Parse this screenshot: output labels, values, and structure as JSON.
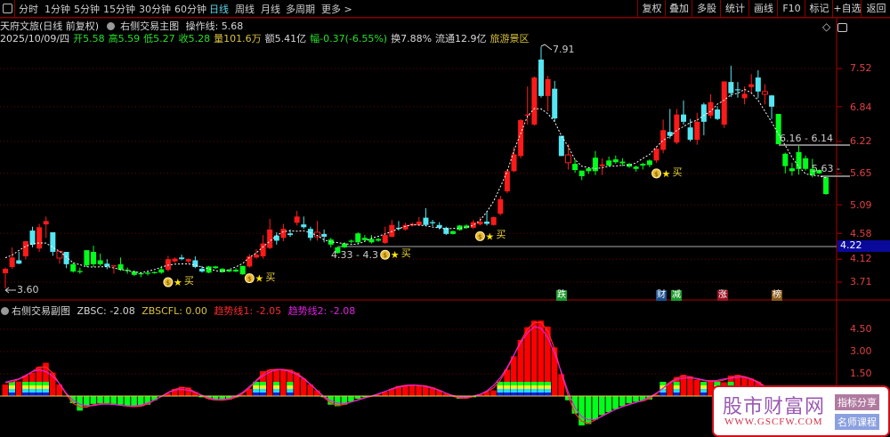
{
  "toolbar": {
    "tabs": [
      "分时",
      "1分钟",
      "5分钟",
      "15分钟",
      "30分钟",
      "60分钟",
      "日线",
      "周线",
      "月线",
      "多周期",
      "更多 >"
    ],
    "active_tab": "日线",
    "right_buttons": [
      "复权",
      "叠加",
      "多股",
      "统计",
      "画线",
      "F10",
      "标记",
      "+自选",
      "返回"
    ]
  },
  "header": {
    "stock": "天府文旅(日线 前复权)",
    "indicator": "右侧交易主图",
    "op_line": "操作线: 5.68",
    "date": "2025/10/09/四",
    "open_label": "开",
    "open": "5.58",
    "high_label": "高",
    "high": "5.59",
    "low_label": "低",
    "low": "5.27",
    "close_label": "收",
    "close": "5.28",
    "volume": "量101.6万",
    "amount": "额5.41亿",
    "change": "幅-0.37(-6.55%)",
    "turnover": "换7.88%",
    "float_cap": "流通12.9亿",
    "sector": "旅游景区"
  },
  "price_axis": [
    "7.52",
    "6.84",
    "6.22",
    "5.65",
    "5.09",
    "4.58",
    "4.12",
    "3.71"
  ],
  "current_price_tag": "4.22",
  "annotations": {
    "high_mark": "7.91",
    "low_mark": "3.60",
    "range1": "4.33 - 4.3",
    "range2": "6.16 - 6.14",
    "range3": "5.63 -",
    "buy_label": "买"
  },
  "news_tags": [
    {
      "text": "跌",
      "color": "#1a9a2a"
    },
    {
      "text": "财",
      "color": "#1c4f8c"
    },
    {
      "text": "减",
      "color": "#1a9a2a"
    },
    {
      "text": "涨",
      "color": "#9a1020"
    },
    {
      "text": "榜",
      "color": "#8a5a1a"
    }
  ],
  "colors": {
    "up": "#ff1a1a",
    "down_cyan": "#54e6f2",
    "down_green": "#00ff1a",
    "ma_dash": "#ffffff",
    "trend1": "#ff2a2a",
    "trend2": "#e020e0",
    "grid": "#6a0000",
    "accent": "#5fd6e6"
  },
  "chart_data": {
    "type": "candlestick",
    "fields": [
      "open",
      "high",
      "low",
      "close",
      "style"
    ],
    "candles": [
      [
        3.87,
        3.97,
        3.6,
        3.95,
        "r"
      ],
      [
        3.98,
        4.33,
        3.95,
        4.15,
        "r"
      ],
      [
        4.1,
        4.25,
        4.03,
        4.04,
        "c"
      ],
      [
        4.17,
        4.44,
        4.12,
        4.44,
        "r"
      ],
      [
        4.63,
        4.7,
        4.33,
        4.38,
        "c"
      ],
      [
        4.31,
        4.75,
        4.25,
        4.69,
        "r"
      ],
      [
        4.74,
        4.88,
        4.5,
        4.8,
        "r"
      ],
      [
        4.6,
        4.6,
        4.18,
        4.25,
        "c"
      ],
      [
        4.14,
        4.26,
        4.04,
        4.26,
        "o"
      ],
      [
        4.25,
        4.25,
        3.96,
        4.03,
        "c"
      ],
      [
        4.03,
        4.06,
        3.88,
        3.9,
        "g"
      ],
      [
        3.91,
        3.97,
        3.86,
        3.89,
        "g"
      ],
      [
        4.28,
        4.28,
        3.98,
        4.01,
        "g"
      ],
      [
        4.25,
        4.36,
        3.98,
        4.03,
        "g"
      ],
      [
        4.1,
        4.22,
        4.0,
        4.03,
        "g"
      ],
      [
        4.04,
        4.12,
        3.94,
        3.99,
        "c"
      ],
      [
        3.99,
        4.01,
        3.86,
        4.01,
        "r"
      ],
      [
        4.03,
        4.15,
        3.91,
        3.93,
        "g"
      ],
      [
        3.93,
        3.97,
        3.86,
        3.91,
        "g"
      ],
      [
        3.9,
        3.92,
        3.82,
        3.84,
        "g"
      ],
      [
        3.87,
        3.89,
        3.8,
        3.85,
        "g"
      ],
      [
        3.88,
        3.9,
        3.83,
        3.86,
        "g"
      ],
      [
        3.89,
        3.9,
        3.86,
        3.87,
        "g"
      ],
      [
        3.94,
        4.0,
        3.86,
        3.88,
        "g"
      ],
      [
        3.93,
        4.18,
        3.9,
        4.12,
        "r"
      ],
      [
        4.08,
        4.15,
        4.06,
        4.13,
        "r"
      ],
      [
        4.15,
        4.2,
        4.1,
        4.12,
        "c"
      ],
      [
        4.08,
        4.13,
        4.05,
        4.12,
        "r"
      ],
      [
        4.1,
        4.17,
        3.96,
        3.98,
        "c"
      ],
      [
        3.95,
        4.0,
        3.88,
        3.9,
        "c"
      ],
      [
        3.99,
        4.0,
        3.87,
        3.88,
        "g"
      ],
      [
        3.99,
        4.0,
        3.95,
        3.96,
        "g"
      ],
      [
        3.95,
        3.96,
        3.88,
        3.89,
        "g"
      ],
      [
        3.93,
        3.94,
        3.89,
        3.9,
        "g"
      ],
      [
        3.93,
        3.96,
        3.89,
        3.9,
        "g"
      ],
      [
        4.0,
        4.0,
        3.84,
        3.85,
        "g"
      ],
      [
        3.99,
        4.21,
        3.97,
        4.17,
        "r"
      ],
      [
        4.15,
        4.3,
        4.13,
        4.2,
        "r"
      ],
      [
        4.17,
        4.55,
        4.13,
        4.4,
        "r"
      ],
      [
        4.32,
        4.84,
        4.3,
        4.65,
        "r"
      ],
      [
        4.54,
        4.6,
        4.38,
        4.45,
        "c"
      ],
      [
        4.5,
        4.75,
        4.44,
        4.66,
        "r"
      ],
      [
        4.58,
        4.65,
        4.52,
        4.55,
        "c"
      ],
      [
        4.77,
        4.98,
        4.72,
        4.88,
        "r"
      ],
      [
        4.74,
        4.88,
        4.66,
        4.69,
        "c"
      ],
      [
        4.66,
        4.7,
        4.45,
        4.5,
        "c"
      ],
      [
        4.52,
        4.8,
        4.45,
        4.6,
        "o"
      ],
      [
        4.57,
        4.65,
        4.42,
        4.52,
        "c"
      ],
      [
        4.47,
        4.5,
        4.33,
        4.38,
        "g"
      ],
      [
        4.33,
        4.35,
        4.22,
        4.23,
        "g"
      ],
      [
        4.4,
        4.42,
        4.32,
        4.33,
        "g"
      ],
      [
        4.45,
        4.47,
        4.4,
        4.43,
        "g"
      ],
      [
        4.58,
        4.6,
        4.4,
        4.42,
        "g"
      ],
      [
        4.5,
        4.55,
        4.44,
        4.46,
        "g"
      ],
      [
        4.48,
        4.55,
        4.4,
        4.42,
        "g"
      ],
      [
        4.48,
        4.5,
        4.43,
        4.45,
        "g"
      ],
      [
        4.41,
        4.7,
        4.39,
        4.55,
        "r"
      ],
      [
        4.52,
        4.82,
        4.51,
        4.73,
        "r"
      ],
      [
        4.68,
        4.8,
        4.63,
        4.66,
        "c"
      ],
      [
        4.65,
        4.77,
        4.63,
        4.73,
        "r"
      ],
      [
        4.72,
        4.77,
        4.7,
        4.75,
        "r"
      ],
      [
        4.73,
        4.87,
        4.71,
        4.79,
        "r"
      ],
      [
        4.86,
        5.03,
        4.72,
        4.73,
        "c"
      ],
      [
        4.78,
        4.82,
        4.71,
        4.76,
        "c"
      ],
      [
        4.73,
        4.78,
        4.65,
        4.68,
        "c"
      ],
      [
        4.68,
        4.7,
        4.55,
        4.57,
        "c"
      ],
      [
        4.62,
        4.63,
        4.56,
        4.57,
        "g"
      ],
      [
        4.72,
        4.73,
        4.63,
        4.64,
        "g"
      ],
      [
        4.72,
        4.74,
        4.66,
        4.68,
        "g"
      ],
      [
        4.68,
        4.82,
        4.66,
        4.78,
        "r"
      ],
      [
        4.74,
        4.87,
        4.72,
        4.79,
        "r"
      ],
      [
        4.79,
        4.98,
        4.72,
        4.75,
        "c"
      ],
      [
        4.73,
        4.88,
        4.72,
        4.87,
        "r"
      ],
      [
        4.93,
        5.25,
        4.9,
        5.19,
        "r"
      ],
      [
        5.33,
        5.72,
        5.3,
        5.69,
        "r"
      ],
      [
        5.69,
        6.12,
        5.67,
        5.99,
        "r"
      ],
      [
        5.96,
        6.62,
        5.92,
        6.6,
        "r"
      ],
      [
        6.68,
        7.2,
        6.52,
        6.7,
        "r"
      ],
      [
        6.52,
        7.38,
        6.5,
        7.36,
        "r"
      ],
      [
        7.68,
        7.91,
        7.0,
        7.03,
        "c"
      ],
      [
        7.03,
        7.39,
        6.76,
        7.33,
        "r"
      ],
      [
        7.16,
        7.3,
        6.58,
        6.63,
        "c"
      ],
      [
        6.32,
        6.32,
        5.96,
        5.96,
        "c"
      ],
      [
        5.84,
        6.17,
        5.72,
        5.98,
        "o"
      ],
      [
        5.82,
        5.9,
        5.66,
        5.71,
        "g"
      ],
      [
        5.7,
        5.7,
        5.53,
        5.6,
        "g"
      ],
      [
        5.74,
        5.76,
        5.64,
        5.69,
        "g"
      ],
      [
        5.93,
        6.05,
        5.62,
        5.69,
        "g"
      ],
      [
        5.78,
        5.92,
        5.62,
        5.81,
        "r"
      ],
      [
        5.88,
        5.95,
        5.77,
        5.79,
        "g"
      ],
      [
        5.9,
        5.97,
        5.82,
        5.85,
        "g"
      ],
      [
        5.86,
        5.92,
        5.78,
        5.83,
        "g"
      ],
      [
        5.82,
        5.84,
        5.75,
        5.77,
        "g"
      ],
      [
        5.77,
        5.79,
        5.68,
        5.73,
        "g"
      ],
      [
        5.82,
        5.84,
        5.72,
        5.79,
        "g"
      ],
      [
        5.88,
        5.9,
        5.76,
        5.8,
        "g"
      ],
      [
        5.88,
        6.13,
        5.84,
        6.09,
        "r"
      ],
      [
        6.07,
        6.61,
        6.01,
        6.42,
        "r"
      ],
      [
        6.39,
        6.8,
        6.27,
        6.32,
        "c"
      ],
      [
        6.2,
        6.8,
        6.17,
        6.7,
        "r"
      ],
      [
        6.7,
        6.95,
        6.52,
        6.57,
        "c"
      ],
      [
        6.47,
        6.62,
        6.22,
        6.25,
        "c"
      ],
      [
        6.25,
        6.73,
        6.16,
        6.57,
        "r"
      ],
      [
        6.88,
        6.91,
        6.33,
        6.57,
        "c"
      ],
      [
        6.68,
        7.06,
        6.63,
        6.92,
        "r"
      ],
      [
        6.79,
        6.85,
        6.6,
        6.62,
        "c"
      ],
      [
        6.52,
        7.29,
        6.46,
        7.29,
        "r"
      ],
      [
        7.28,
        7.57,
        7.01,
        7.08,
        "c"
      ],
      [
        7.15,
        7.28,
        7.0,
        7.14,
        "c"
      ],
      [
        6.99,
        7.2,
        6.88,
        7.07,
        "r"
      ],
      [
        7.19,
        7.42,
        7.08,
        7.24,
        "r"
      ],
      [
        7.36,
        7.49,
        6.99,
        7.11,
        "c"
      ],
      [
        7.06,
        7.24,
        6.88,
        7.11,
        "o"
      ],
      [
        7.04,
        7.05,
        6.62,
        6.84,
        "c"
      ],
      [
        6.71,
        6.71,
        6.17,
        6.17,
        "g"
      ],
      [
        6.0,
        6.02,
        5.65,
        5.78,
        "g"
      ],
      [
        5.74,
        5.84,
        5.61,
        5.69,
        "g"
      ],
      [
        6.03,
        6.14,
        5.63,
        5.73,
        "g"
      ],
      [
        5.92,
        5.97,
        5.7,
        5.73,
        "g"
      ],
      [
        5.73,
        5.91,
        5.58,
        5.62,
        "g"
      ],
      [
        5.71,
        5.72,
        5.64,
        5.65,
        "g"
      ],
      [
        5.58,
        5.59,
        5.27,
        5.28,
        "g"
      ]
    ],
    "buy_signal_indices": [
      24,
      36,
      56,
      70,
      96
    ],
    "price_axis_range": [
      3.6,
      7.91
    ],
    "sub_panel": {
      "title": "右侧交易副图",
      "zbsc_label": "ZBSC: -2.08",
      "zbscfl_label": "ZBSCFL: 0.00",
      "trend1_label": "趋势线1: -2.05",
      "trend2_label": "趋势线2: -2.08",
      "axis": [
        "4.50",
        "3.00",
        "1.50"
      ],
      "zbsc": [
        0.8,
        1.0,
        1.0,
        1.4,
        1.6,
        2.0,
        2.26,
        1.6,
        0.8,
        0.0,
        -0.5,
        -1.0,
        -0.7,
        -0.55,
        -0.5,
        -0.5,
        -0.55,
        -0.6,
        -0.7,
        -0.75,
        -0.7,
        -0.6,
        -0.3,
        0.05,
        0.2,
        0.5,
        0.65,
        0.6,
        0.3,
        -0.1,
        -0.2,
        -0.3,
        -0.3,
        -0.25,
        -0.1,
        0.1,
        0.5,
        1.0,
        1.7,
        1.8,
        1.8,
        1.8,
        1.8,
        1.6,
        1.2,
        0.8,
        0.4,
        -0.1,
        -0.6,
        -0.7,
        -0.6,
        -0.4,
        -0.2,
        -0.1,
        -0.05,
        0.1,
        0.3,
        0.5,
        0.7,
        0.75,
        0.75,
        0.75,
        0.7,
        0.6,
        0.4,
        0.2,
        -0.05,
        -0.2,
        -0.15,
        -0.1,
        0.15,
        0.3,
        0.4,
        1.0,
        1.8,
        2.7,
        3.8,
        4.66,
        5.1,
        5.1,
        4.7,
        3.3,
        1.5,
        -0.3,
        -1.2,
        -2.0,
        -1.9,
        -1.6,
        -1.3,
        -1.1,
        -0.9,
        -0.7,
        -0.5,
        -0.4,
        -0.35,
        -0.25,
        0.1,
        0.6,
        0.9,
        1.3,
        1.45,
        1.35,
        1.1,
        0.95,
        1.1,
        0.9,
        0.95,
        1.4,
        1.45,
        1.3,
        1.2,
        1.0,
        0.7,
        0.3,
        -0.2,
        -0.6,
        -1.0,
        -1.3,
        -1.6,
        -1.8,
        -2.0,
        -2.08
      ],
      "zbscfl_mark_indices": [
        1,
        3,
        4,
        5,
        6,
        37,
        38,
        40,
        42,
        73,
        74,
        75,
        76,
        77,
        78,
        79,
        80,
        97,
        99,
        103,
        105,
        107
      ]
    }
  },
  "watermark": {
    "name": "股市财富网",
    "url": "WWW.GSCFW.COM",
    "btn1": "指标分享",
    "btn2": "名师课程"
  }
}
